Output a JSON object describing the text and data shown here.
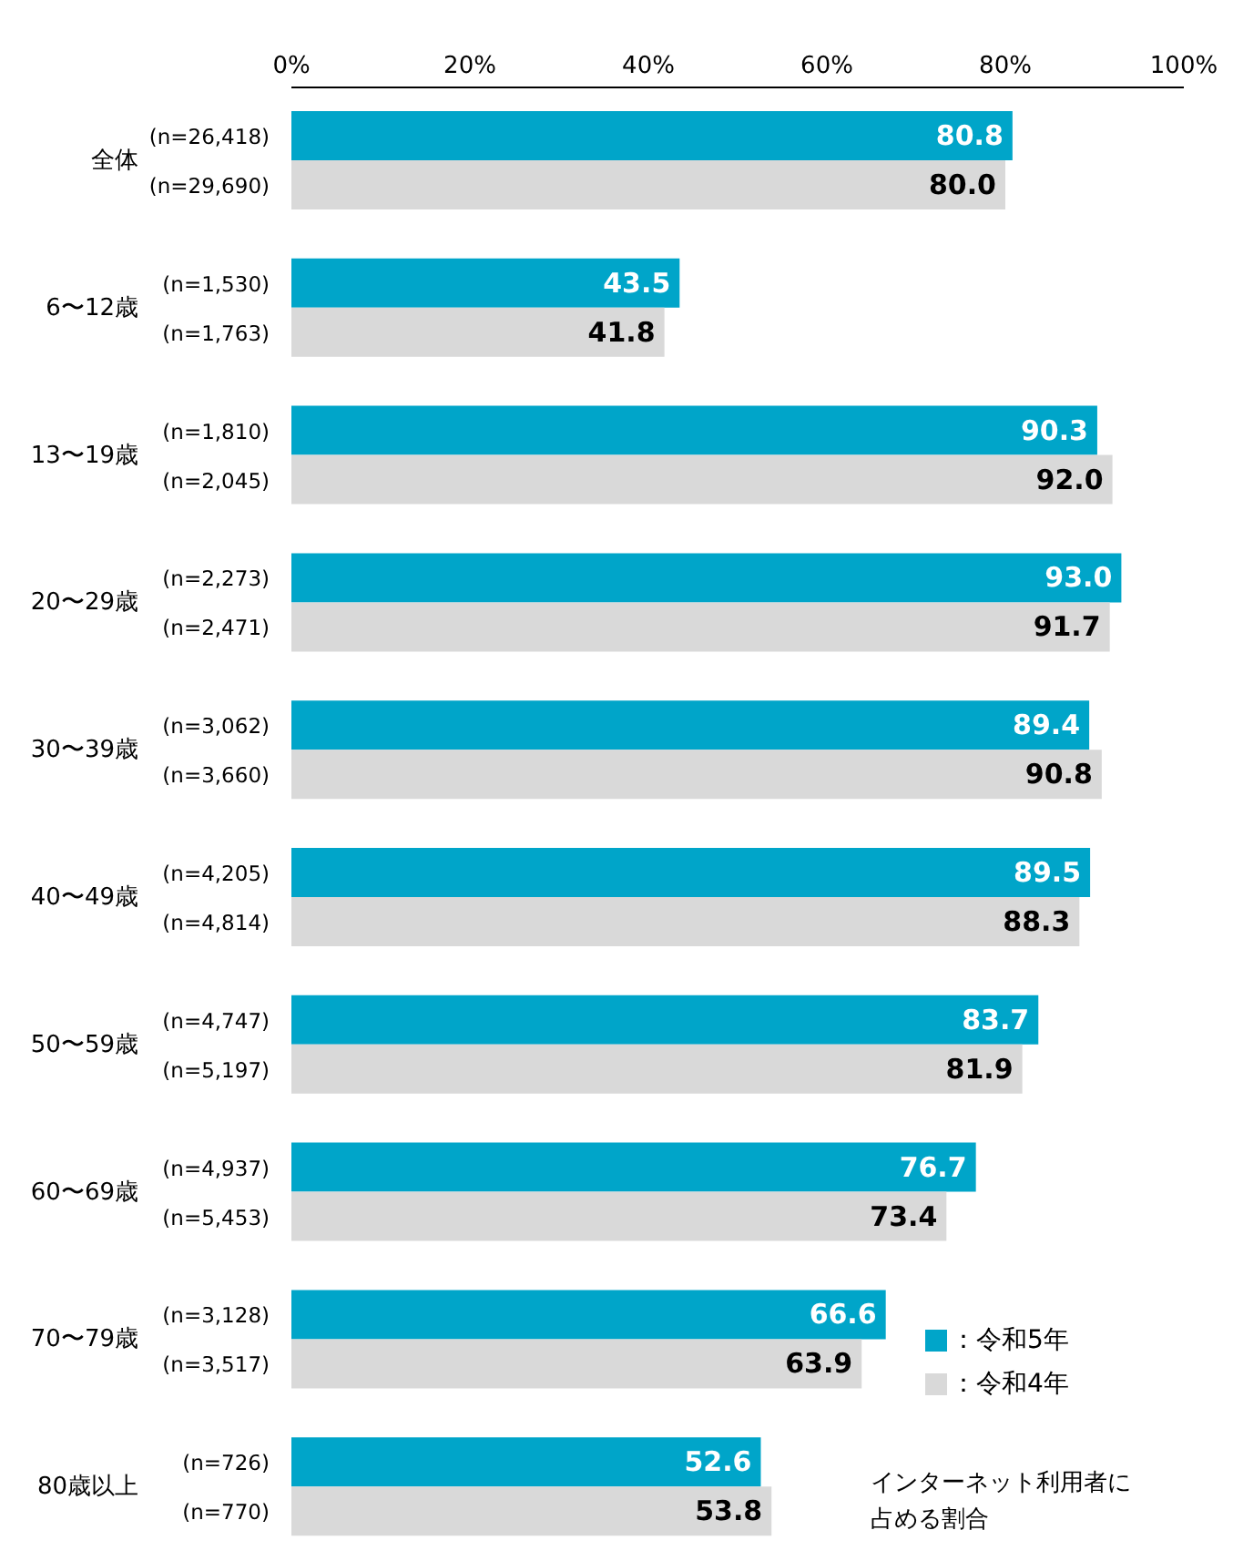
{
  "chart_data": {
    "type": "bar",
    "orientation": "horizontal",
    "categories": [
      "全体",
      "6〜12歳",
      "13〜19歳",
      "20〜29歳",
      "30〜39歳",
      "40〜49歳",
      "50〜59歳",
      "60〜69歳",
      "70〜79歳",
      "80歳以上"
    ],
    "series": [
      {
        "name": "：令和5年",
        "color": "#00a5c9",
        "values": [
          80.8,
          43.5,
          90.3,
          93.0,
          89.4,
          89.5,
          83.7,
          76.7,
          66.6,
          52.6
        ],
        "value_labels": [
          "80.8",
          "43.5",
          "90.3",
          "93.0",
          "89.4",
          "89.5",
          "83.7",
          "76.7",
          "66.6",
          "52.6"
        ]
      },
      {
        "name": "：令和4年",
        "color": "#d9d9d9",
        "values": [
          80.0,
          41.8,
          92.0,
          91.7,
          90.8,
          88.3,
          81.9,
          73.4,
          63.9,
          53.8
        ],
        "value_labels": [
          "80.0",
          "41.8",
          "92.0",
          "91.7",
          "90.8",
          "88.3",
          "81.9",
          "73.4",
          "63.9",
          "53.8"
        ]
      }
    ],
    "xlim": [
      0,
      100
    ],
    "xticks": [
      {
        "value": 0,
        "label": "0%"
      },
      {
        "value": 20,
        "label": "20%"
      },
      {
        "value": 40,
        "label": "40%"
      },
      {
        "value": 60,
        "label": "60%"
      },
      {
        "value": 80,
        "label": "80%"
      },
      {
        "value": 100,
        "label": "100%"
      }
    ],
    "grid": false,
    "legend": "bottom right",
    "annotations": [
      "(n=26,418)",
      "(n=29,690)",
      "(n=1,530)",
      "(n=1,763)",
      "(n=1,810)",
      "(n=2,045)",
      "(n=2,273)",
      "(n=2,471)",
      "(n=3,062)",
      "(n=3,660)",
      "(n=4,205)",
      "(n=4,814)",
      "(n=4,747)",
      "(n=5,197)",
      "(n=4,937)",
      "(n=5,453)",
      "(n=3,128)",
      "(n=3,517)",
      "(n=726)",
      "(n=770)",
      "インターネット利用者に占める割合"
    ]
  }
}
